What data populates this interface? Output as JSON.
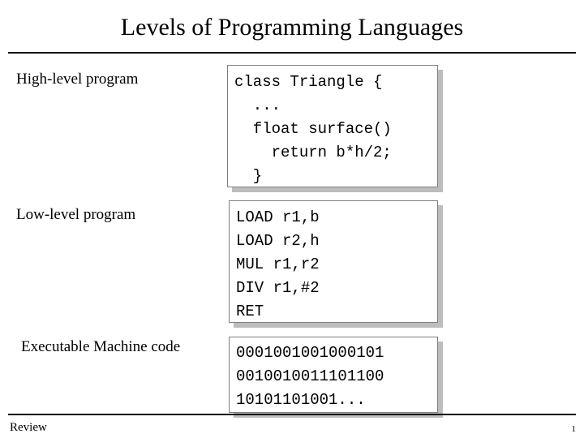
{
  "slide": {
    "title": "Levels of Programming Languages",
    "footer_text": "Review",
    "page_number": "1"
  },
  "sections": {
    "high_level": {
      "label": "High-level program",
      "code": [
        "class Triangle {",
        "  ...",
        "  float surface()",
        "    return b*h/2;",
        "  }"
      ]
    },
    "low_level": {
      "label": "Low-level program",
      "code": [
        "LOAD r1,b",
        "LOAD r2,h",
        "MUL r1,r2",
        "DIV r1,#2",
        "RET"
      ]
    },
    "machine_code": {
      "label": "Executable Machine code",
      "code": [
        "0001001001000101",
        "0010010011101100",
        "10101101001..."
      ]
    }
  }
}
